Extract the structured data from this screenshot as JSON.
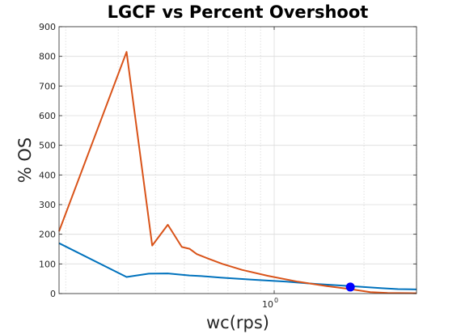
{
  "chart_data": {
    "type": "line",
    "title": "LGCF vs Percent Overshoot",
    "xlabel": "wc(rps)",
    "ylabel": "% OS",
    "x_scale": "log",
    "xlim": [
      0.19,
      3.0
    ],
    "ylim": [
      0,
      900
    ],
    "yticks": [
      0,
      100,
      200,
      300,
      400,
      500,
      600,
      700,
      800,
      900
    ],
    "xtick_major": {
      "value": 1,
      "base": "10",
      "exponent": "0"
    },
    "grid": true,
    "minor_grid_x": true,
    "series": [
      {
        "color": "#0072bd",
        "x": [
          0.19,
          0.32,
          0.38,
          0.44,
          0.52,
          0.57,
          0.66,
          0.84,
          1.1,
          1.4,
          1.8,
          2.3,
          2.6,
          3.0
        ],
        "y": [
          170,
          56,
          67,
          68,
          61,
          59,
          54,
          47,
          40,
          32,
          25,
          18,
          15,
          14
        ]
      },
      {
        "color": "#d95319",
        "x": [
          0.19,
          0.32,
          0.39,
          0.44,
          0.49,
          0.52,
          0.55,
          0.6,
          0.67,
          0.78,
          0.95,
          1.2,
          1.5,
          1.8,
          2.1,
          2.4,
          3.0
        ],
        "y": [
          210,
          815,
          162,
          232,
          157,
          151,
          133,
          118,
          100,
          80,
          60,
          40,
          25,
          15,
          5,
          2,
          1
        ]
      }
    ],
    "marker": {
      "x": 1.8,
      "y": 22,
      "color": "#0000ff"
    }
  }
}
